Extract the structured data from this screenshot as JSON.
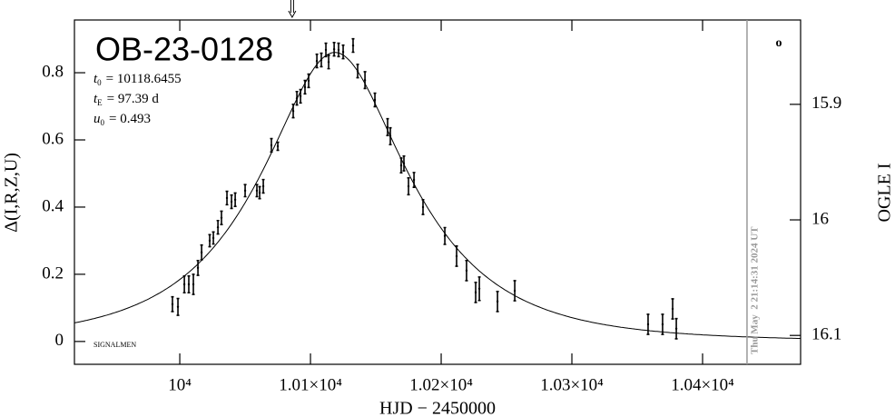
{
  "chart_data": {
    "type": "scatter",
    "title": "OB-23-0128",
    "x_label": "HJD − 2450000",
    "y_label": "Δ(I,R,Z,U)",
    "y2_label": "OGLE I",
    "annotation": "SIGNALMEN",
    "symbol": "o",
    "timestamp": {
      "x": 10434,
      "label": "Thu May  2 21:14:31 2024 UT",
      "color": "#999999"
    },
    "arrow_x": 10086,
    "params": [
      {
        "symbol": "t",
        "subscript": "0",
        "value": 10118.6455,
        "value_label": "= 10118.6455"
      },
      {
        "symbol": "t",
        "subscript": "E",
        "value": 97.39,
        "value_label": "= 97.39 d"
      },
      {
        "symbol": "u",
        "subscript": "0",
        "value": 0.493,
        "value_label": "= 0.493"
      }
    ],
    "x": [
      9994.4,
      9998.6,
      10003.5,
      10006.9,
      10010.4,
      10013.9,
      10016.7,
      10022.9,
      10025.7,
      10029.2,
      10031.9,
      10036.1,
      10039.6,
      10042.4,
      10050,
      10059,
      10061.1,
      10063.9,
      10070.1,
      10075,
      10086.8,
      10089.6,
      10092.4,
      10095.8,
      10098.6,
      10104.9,
      10108.3,
      10111.8,
      10113.9,
      10118.1,
      10121.5,
      10125,
      10132.6,
      10136.1,
      10141.7,
      10149.3,
      10159,
      10161.1,
      10169.4,
      10171.5,
      10175,
      10179.2,
      10186.1,
      10202.8,
      10211.8,
      10219.4,
      10226.4,
      10229.2,
      10243.1,
      10256.3,
      10358.3,
      10369.4,
      10377.1,
      10379.9
    ],
    "values": [
      0.111,
      0.103,
      0.17,
      0.17,
      0.17,
      0.219,
      0.265,
      0.3,
      0.308,
      0.34,
      0.368,
      0.427,
      0.416,
      0.422,
      0.449,
      0.449,
      0.443,
      0.462,
      0.584,
      0.581,
      0.686,
      0.724,
      0.73,
      0.757,
      0.776,
      0.835,
      0.838,
      0.868,
      0.832,
      0.87,
      0.868,
      0.862,
      0.881,
      0.805,
      0.778,
      0.719,
      0.638,
      0.611,
      0.524,
      0.53,
      0.462,
      0.481,
      0.4,
      0.314,
      0.254,
      0.211,
      0.146,
      0.157,
      0.119,
      0.151,
      0.051,
      0.051,
      0.097,
      0.038
    ],
    "errors": [
      0.022,
      0.025,
      0.025,
      0.025,
      0.03,
      0.022,
      0.022,
      0.018,
      0.018,
      0.02,
      0.02,
      0.02,
      0.02,
      0.02,
      0.018,
      0.018,
      0.018,
      0.02,
      0.02,
      0.012,
      0.02,
      0.02,
      0.02,
      0.02,
      0.02,
      0.02,
      0.02,
      0.02,
      0.02,
      0.02,
      0.02,
      0.02,
      0.02,
      0.02,
      0.025,
      0.02,
      0.025,
      0.025,
      0.022,
      0.022,
      0.025,
      0.022,
      0.022,
      0.025,
      0.03,
      0.03,
      0.03,
      0.035,
      0.03,
      0.03,
      0.03,
      0.03,
      0.03,
      0.03
    ],
    "color": "#000000",
    "xlim": [
      9919.4,
      10475
    ],
    "ylim": [
      -0.068,
      0.957
    ],
    "y2lim": [
      16.125,
      15.827
    ],
    "xticks": [
      {
        "value": 10000,
        "label": "10⁴"
      },
      {
        "value": 10100,
        "label": "1.01×10⁴"
      },
      {
        "value": 10200,
        "label": "1.02×10⁴"
      },
      {
        "value": 10300,
        "label": "1.03×10⁴"
      },
      {
        "value": 10400,
        "label": "1.04×10⁴"
      }
    ],
    "yticks": [
      0,
      0.2,
      0.4,
      0.6,
      0.8
    ],
    "y2ticks": [
      15.9,
      16,
      16.1
    ]
  }
}
